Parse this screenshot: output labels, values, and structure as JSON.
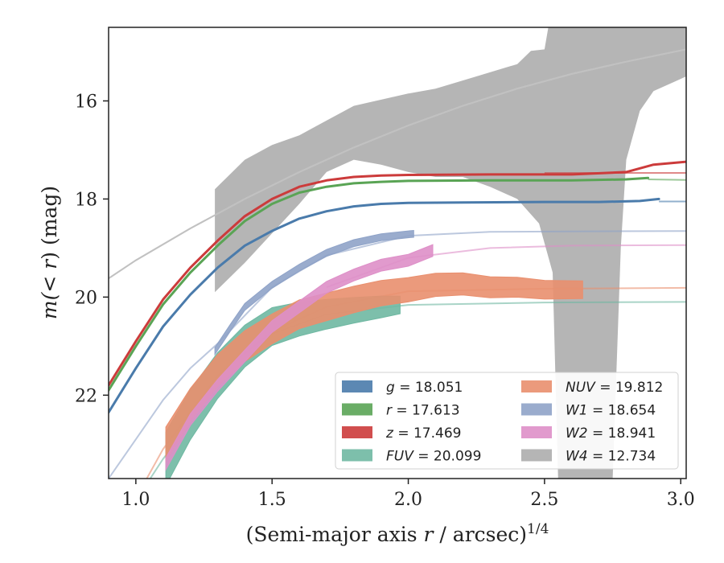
{
  "chart_data": {
    "type": "line",
    "title": "",
    "xlabel_main": "(Semi-major axis ",
    "xlabel_var": "r",
    "xlabel_rest": " / arcsec)",
    "xlabel_sup": "1/4",
    "ylabel_pre": "m(",
    "ylabel_var": "< r",
    "ylabel_post": ") (mag)",
    "xlim": [
      0.9,
      3.02
    ],
    "ylim": [
      23.7,
      14.5
    ],
    "y_inverted": true,
    "grid": false,
    "legend_position": "lower-right",
    "x_ticks": [
      1.0,
      1.5,
      2.0,
      2.5,
      3.0
    ],
    "x_tick_labels": [
      "1.0",
      "1.5",
      "2.0",
      "2.5",
      "3.0"
    ],
    "y_ticks": [
      16,
      18,
      20,
      22
    ],
    "y_tick_labels": [
      "16",
      "18",
      "20",
      "22"
    ],
    "series": [
      {
        "name": "g",
        "legend_label": "= 18.051",
        "color": "#4a7bab",
        "measured": [
          [
            0.9,
            22.35
          ],
          [
            1.0,
            21.45
          ],
          [
            1.1,
            20.6
          ],
          [
            1.2,
            19.95
          ],
          [
            1.3,
            19.4
          ],
          [
            1.4,
            18.95
          ],
          [
            1.5,
            18.65
          ],
          [
            1.6,
            18.4
          ],
          [
            1.7,
            18.25
          ],
          [
            1.8,
            18.15
          ],
          [
            1.9,
            18.1
          ],
          [
            2.0,
            18.08
          ],
          [
            2.2,
            18.07
          ],
          [
            2.5,
            18.06
          ],
          [
            2.7,
            18.06
          ],
          [
            2.85,
            18.04
          ],
          [
            2.92,
            18.0
          ]
        ],
        "band_halfwidth": 0.03,
        "model": [
          [
            2.92,
            18.05
          ],
          [
            3.02,
            18.051
          ]
        ]
      },
      {
        "name": "r",
        "legend_label": "= 17.613",
        "color": "#5aa455",
        "measured": [
          [
            0.9,
            21.9
          ],
          [
            1.0,
            21.0
          ],
          [
            1.1,
            20.15
          ],
          [
            1.2,
            19.5
          ],
          [
            1.3,
            18.95
          ],
          [
            1.4,
            18.45
          ],
          [
            1.5,
            18.1
          ],
          [
            1.6,
            17.87
          ],
          [
            1.7,
            17.75
          ],
          [
            1.8,
            17.68
          ],
          [
            1.9,
            17.65
          ],
          [
            2.0,
            17.63
          ],
          [
            2.3,
            17.62
          ],
          [
            2.6,
            17.62
          ],
          [
            2.8,
            17.6
          ],
          [
            2.88,
            17.57
          ]
        ],
        "band_halfwidth": 0.03,
        "model": [
          [
            2.88,
            17.6
          ],
          [
            3.02,
            17.613
          ]
        ]
      },
      {
        "name": "z",
        "legend_label": "= 17.469",
        "color": "#cc3b3b",
        "measured": [
          [
            0.9,
            21.8
          ],
          [
            1.0,
            20.9
          ],
          [
            1.1,
            20.05
          ],
          [
            1.2,
            19.4
          ],
          [
            1.3,
            18.85
          ],
          [
            1.4,
            18.35
          ],
          [
            1.5,
            18.0
          ],
          [
            1.6,
            17.75
          ],
          [
            1.7,
            17.62
          ],
          [
            1.8,
            17.55
          ],
          [
            1.9,
            17.52
          ],
          [
            2.0,
            17.51
          ],
          [
            2.3,
            17.5
          ],
          [
            2.6,
            17.5
          ],
          [
            2.8,
            17.45
          ],
          [
            2.9,
            17.3
          ],
          [
            3.02,
            17.24
          ]
        ],
        "band_halfwidth": 0.04,
        "model": [
          [
            2.5,
            17.47
          ],
          [
            3.02,
            17.469
          ]
        ]
      },
      {
        "name": "FUV",
        "legend_label": "= 20.099",
        "color": "#6fb8a2",
        "measured": [
          [
            1.11,
            23.3
          ],
          [
            1.2,
            22.4
          ],
          [
            1.3,
            21.6
          ],
          [
            1.4,
            21.0
          ],
          [
            1.5,
            20.6
          ],
          [
            1.6,
            20.45
          ],
          [
            1.7,
            20.35
          ],
          [
            1.8,
            20.27
          ],
          [
            1.9,
            20.2
          ],
          [
            1.97,
            20.16
          ]
        ],
        "band_halfwidth_start": 0.55,
        "band_halfwidth_end": 0.18,
        "model": [
          [
            0.9,
            25.0
          ],
          [
            1.1,
            23.3
          ],
          [
            1.3,
            21.9
          ],
          [
            1.5,
            20.75
          ],
          [
            1.7,
            20.35
          ],
          [
            2.0,
            20.16
          ],
          [
            2.5,
            20.11
          ],
          [
            3.02,
            20.099
          ]
        ]
      },
      {
        "name": "NUV",
        "legend_label": "= 19.812",
        "color": "#e98f6e",
        "measured": [
          [
            1.11,
            23.0
          ],
          [
            1.2,
            22.2
          ],
          [
            1.3,
            21.5
          ],
          [
            1.4,
            21.0
          ],
          [
            1.5,
            20.65
          ],
          [
            1.6,
            20.35
          ],
          [
            1.7,
            20.2
          ],
          [
            1.8,
            20.05
          ],
          [
            1.9,
            19.92
          ],
          [
            2.0,
            19.85
          ],
          [
            2.1,
            19.75
          ],
          [
            2.2,
            19.73
          ],
          [
            2.3,
            19.8
          ],
          [
            2.4,
            19.8
          ],
          [
            2.5,
            19.85
          ],
          [
            2.64,
            19.85
          ]
        ],
        "band_halfwidth_start": 0.35,
        "band_halfwidth_end": 0.18,
        "model": [
          [
            0.9,
            25.0
          ],
          [
            1.0,
            24.1
          ],
          [
            1.1,
            23.1
          ],
          [
            1.3,
            21.6
          ],
          [
            1.5,
            20.7
          ],
          [
            1.7,
            20.2
          ],
          [
            2.0,
            19.88
          ],
          [
            2.5,
            19.83
          ],
          [
            3.02,
            19.812
          ]
        ]
      },
      {
        "name": "W1",
        "legend_label": "= 18.654",
        "color": "#8fa3c8",
        "measured": [
          [
            1.29,
            21.1
          ],
          [
            1.35,
            20.6
          ],
          [
            1.4,
            20.2
          ],
          [
            1.5,
            19.75
          ],
          [
            1.6,
            19.4
          ],
          [
            1.7,
            19.1
          ],
          [
            1.8,
            18.9
          ],
          [
            1.9,
            18.78
          ],
          [
            2.0,
            18.72
          ],
          [
            2.02,
            18.71
          ]
        ],
        "band_halfwidth": 0.07,
        "model": [
          [
            0.9,
            23.7
          ],
          [
            1.0,
            22.9
          ],
          [
            1.1,
            22.1
          ],
          [
            1.2,
            21.45
          ],
          [
            1.3,
            20.95
          ],
          [
            1.5,
            19.8
          ],
          [
            1.7,
            19.15
          ],
          [
            2.0,
            18.75
          ],
          [
            2.3,
            18.67
          ],
          [
            2.6,
            18.66
          ],
          [
            3.02,
            18.654
          ]
        ]
      },
      {
        "name": "W2",
        "legend_label": "= 18.941",
        "color": "#de8fc8",
        "measured": [
          [
            1.11,
            23.4
          ],
          [
            1.2,
            22.5
          ],
          [
            1.3,
            21.8
          ],
          [
            1.4,
            21.2
          ],
          [
            1.5,
            20.6
          ],
          [
            1.6,
            20.2
          ],
          [
            1.7,
            19.8
          ],
          [
            1.8,
            19.55
          ],
          [
            1.9,
            19.35
          ],
          [
            2.0,
            19.25
          ],
          [
            2.09,
            19.05
          ]
        ],
        "band_halfwidth": 0.12,
        "model": [
          [
            1.7,
            19.8
          ],
          [
            2.0,
            19.2
          ],
          [
            2.3,
            19.0
          ],
          [
            2.6,
            18.95
          ],
          [
            3.02,
            18.941
          ]
        ]
      },
      {
        "name": "W4",
        "legend_label": "= 12.734",
        "color": "#b5b5b5",
        "band_upper": [
          [
            1.29,
            17.8
          ],
          [
            1.4,
            17.2
          ],
          [
            1.5,
            16.9
          ],
          [
            1.6,
            16.7
          ],
          [
            1.7,
            16.4
          ],
          [
            1.8,
            16.1
          ],
          [
            2.0,
            15.85
          ],
          [
            2.1,
            15.75
          ],
          [
            2.25,
            15.5
          ],
          [
            2.4,
            15.25
          ],
          [
            2.45,
            14.98
          ],
          [
            2.5,
            14.95
          ],
          [
            2.52,
            14.3
          ],
          [
            2.7,
            14.4
          ],
          [
            2.8,
            14.45
          ],
          [
            2.9,
            14.5
          ],
          [
            2.98,
            14.5
          ],
          [
            3.02,
            14.5
          ]
        ],
        "band_lower": [
          [
            3.02,
            15.5
          ],
          [
            2.98,
            15.6
          ],
          [
            2.9,
            15.8
          ],
          [
            2.85,
            16.2
          ],
          [
            2.8,
            17.2
          ],
          [
            2.78,
            19.0
          ],
          [
            2.75,
            23.7
          ],
          [
            2.55,
            23.7
          ],
          [
            2.53,
            19.5
          ],
          [
            2.48,
            18.5
          ],
          [
            2.4,
            18.0
          ],
          [
            2.3,
            17.75
          ],
          [
            2.2,
            17.55
          ],
          [
            2.1,
            17.55
          ],
          [
            2.0,
            17.45
          ],
          [
            1.9,
            17.3
          ],
          [
            1.8,
            17.2
          ],
          [
            1.7,
            17.45
          ],
          [
            1.6,
            18.1
          ],
          [
            1.5,
            18.7
          ],
          [
            1.4,
            19.3
          ],
          [
            1.29,
            19.9
          ]
        ],
        "model": [
          [
            0.9,
            19.62
          ],
          [
            1.0,
            19.25
          ],
          [
            1.2,
            18.6
          ],
          [
            1.4,
            18.0
          ],
          [
            1.6,
            17.45
          ],
          [
            1.8,
            16.95
          ],
          [
            2.0,
            16.5
          ],
          [
            2.2,
            16.1
          ],
          [
            2.4,
            15.75
          ],
          [
            2.6,
            15.45
          ],
          [
            2.8,
            15.2
          ],
          [
            3.02,
            14.95
          ]
        ]
      }
    ]
  }
}
